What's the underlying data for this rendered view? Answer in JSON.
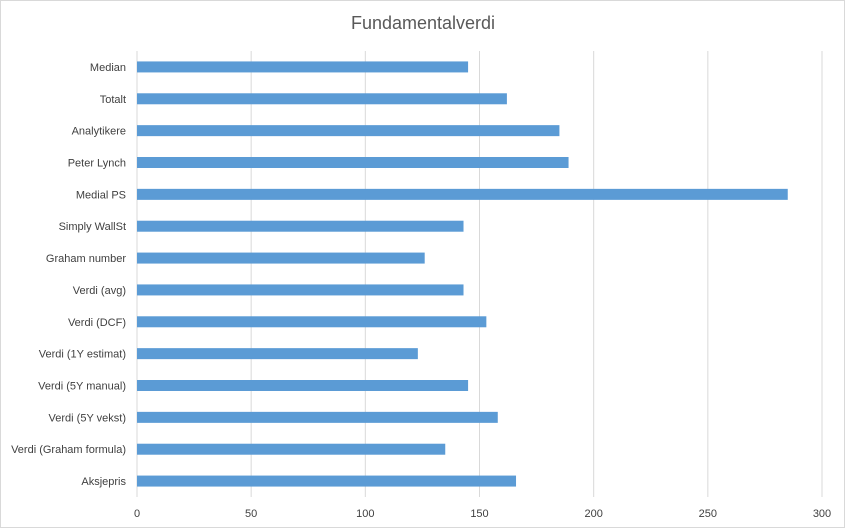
{
  "chart_data": {
    "type": "bar",
    "orientation": "horizontal",
    "title": "Fundamentalverdi",
    "xlabel": "",
    "ylabel": "",
    "categories": [
      "Median",
      "Totalt",
      "Analytikere",
      "Peter Lynch",
      "Medial PS",
      "Simply WallSt",
      "Graham number",
      "Verdi (avg)",
      "Verdi (DCF)",
      "Verdi (1Y estimat)",
      "Verdi (5Y manual)",
      "Verdi (5Y vekst)",
      "Verdi (Graham formula)",
      "Aksjepris"
    ],
    "values": [
      145,
      162,
      185,
      189,
      285,
      143,
      126,
      143,
      153,
      123,
      145,
      158,
      135,
      166
    ],
    "xlim": [
      0,
      300
    ],
    "xticks": [
      0,
      50,
      100,
      150,
      200,
      250,
      300
    ],
    "grid": true,
    "legend": "none",
    "bar_color": "#5b9bd5"
  }
}
